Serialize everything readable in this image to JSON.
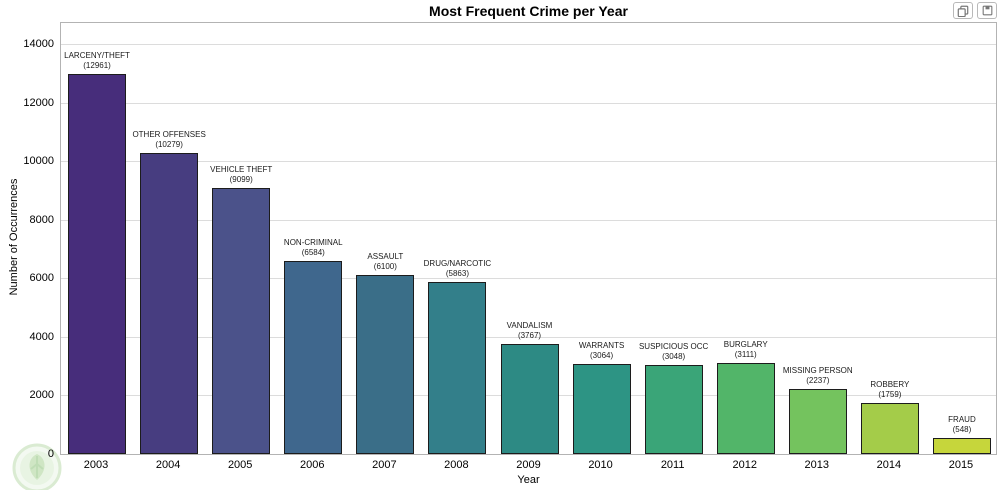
{
  "page": {
    "title": "Most Frequent Crime per Year"
  },
  "toolbar": {
    "copy_button": {
      "icon": "copy-icon"
    },
    "save_button": {
      "icon": "save-icon"
    }
  },
  "chart_data": {
    "type": "bar",
    "title": "Most Frequent Crime per Year",
    "xlabel": "Year",
    "ylabel": "Number of Occurrences",
    "ylim": [
      0,
      14000
    ],
    "yticks": [
      0,
      2000,
      4000,
      6000,
      8000,
      10000,
      12000,
      14000
    ],
    "grid": "horizontal",
    "legend": "none",
    "palette": "viridis",
    "categories": [
      "2003",
      "2004",
      "2005",
      "2006",
      "2007",
      "2008",
      "2009",
      "2010",
      "2011",
      "2012",
      "2013",
      "2014",
      "2015"
    ],
    "series": [
      {
        "name": "most-frequent-crime-count",
        "values": [
          12961,
          10279,
          9099,
          6584,
          6100,
          5863,
          3767,
          3064,
          3048,
          3111,
          2237,
          1759,
          548
        ]
      }
    ],
    "bar_labels": [
      "LARCENY/THEFT",
      "OTHER OFFENSES",
      "VEHICLE THEFT",
      "NON-CRIMINAL",
      "ASSAULT",
      "DRUG/NARCOTIC",
      "VANDALISM",
      "WARRANTS",
      "SUSPICIOUS OCC",
      "BURGLARY",
      "MISSING PERSON",
      "ROBBERY",
      "FRAUD"
    ],
    "bar_colors": [
      "#472d7b",
      "#473d80",
      "#4b528a",
      "#3f678d",
      "#3a6e88",
      "#337f8a",
      "#2d8a84",
      "#2d9484",
      "#3aa578",
      "#52b569",
      "#74c35e",
      "#a4cc49",
      "#c6d63b"
    ]
  }
}
